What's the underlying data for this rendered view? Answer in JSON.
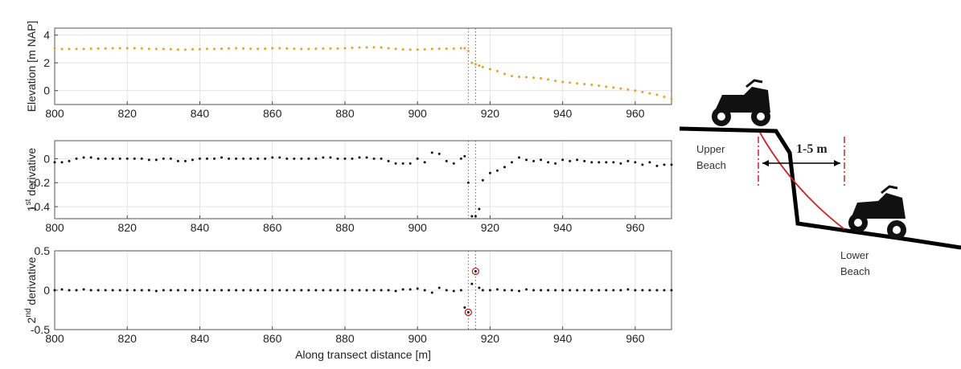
{
  "chart_data": [
    {
      "type": "scatter",
      "ylabel": "Elevation [m NAP]",
      "color": "#e3a12f",
      "grid": true,
      "xlim": [
        800,
        970
      ],
      "xticks": [
        800,
        820,
        840,
        860,
        880,
        900,
        920,
        940,
        960
      ],
      "ylim": [
        -1,
        4.5
      ],
      "yticks": [
        0,
        2,
        4
      ],
      "vlines": [
        914,
        916
      ],
      "x": [
        800,
        802,
        804,
        806,
        808,
        810,
        812,
        814,
        816,
        818,
        820,
        822,
        824,
        826,
        828,
        830,
        832,
        834,
        836,
        838,
        840,
        842,
        844,
        846,
        848,
        850,
        852,
        854,
        856,
        858,
        860,
        862,
        864,
        866,
        868,
        870,
        872,
        874,
        876,
        878,
        880,
        882,
        884,
        886,
        888,
        890,
        892,
        894,
        896,
        898,
        900,
        902,
        904,
        906,
        908,
        910,
        912,
        913,
        914,
        915,
        916,
        917,
        918,
        920,
        922,
        924,
        926,
        928,
        930,
        932,
        934,
        936,
        938,
        940,
        942,
        944,
        946,
        948,
        950,
        952,
        954,
        956,
        958,
        960,
        962,
        964,
        966,
        968,
        970
      ],
      "values": [
        3.05,
        3.0,
        3.0,
        3.0,
        3.0,
        3.02,
        3.03,
        3.03,
        3.05,
        3.05,
        3.05,
        3.05,
        3.03,
        3.0,
        3.0,
        3.0,
        2.98,
        2.95,
        2.95,
        2.97,
        2.98,
        3.0,
        3.0,
        3.02,
        3.03,
        3.05,
        3.03,
        3.02,
        3.0,
        3.02,
        3.05,
        3.05,
        3.03,
        3.02,
        3.0,
        3.0,
        3.02,
        3.03,
        3.03,
        3.03,
        3.05,
        3.08,
        3.1,
        3.12,
        3.12,
        3.1,
        3.05,
        3.0,
        2.97,
        2.95,
        2.95,
        2.97,
        3.0,
        3.02,
        3.02,
        3.03,
        3.05,
        3.05,
        2.85,
        2.0,
        1.9,
        1.8,
        1.7,
        1.55,
        1.4,
        1.2,
        1.05,
        1.0,
        0.97,
        0.93,
        0.88,
        0.8,
        0.7,
        0.62,
        0.57,
        0.52,
        0.47,
        0.42,
        0.35,
        0.28,
        0.22,
        0.15,
        0.08,
        0,
        -0.1,
        -0.2,
        -0.3,
        -0.45,
        -0.6
      ]
    },
    {
      "type": "scatter",
      "ylabel": {
        "base": "1",
        "sup": "st",
        "text": " derivative"
      },
      "color": "#111111",
      "grid": true,
      "xlim": [
        800,
        970
      ],
      "xticks": [
        800,
        820,
        840,
        860,
        880,
        900,
        920,
        940,
        960
      ],
      "ylim": [
        -0.5,
        0.15
      ],
      "yticks": [
        -0.4,
        -0.2,
        0
      ],
      "vlines": [
        914,
        916
      ],
      "x": [
        800,
        802,
        804,
        806,
        808,
        810,
        812,
        814,
        816,
        818,
        820,
        822,
        824,
        826,
        828,
        830,
        832,
        834,
        836,
        838,
        840,
        842,
        844,
        846,
        848,
        850,
        852,
        854,
        856,
        858,
        860,
        862,
        864,
        866,
        868,
        870,
        872,
        874,
        876,
        878,
        880,
        882,
        884,
        886,
        888,
        890,
        892,
        894,
        896,
        898,
        900,
        902,
        904,
        906,
        908,
        910,
        912,
        913,
        914,
        915,
        916,
        917,
        918,
        920,
        922,
        924,
        926,
        928,
        930,
        932,
        934,
        936,
        938,
        940,
        942,
        944,
        946,
        948,
        950,
        952,
        954,
        956,
        958,
        960,
        962,
        964,
        966,
        968,
        970
      ],
      "values": [
        -0.03,
        -0.03,
        -0.02,
        0,
        0.01,
        0.01,
        0,
        0,
        0,
        0,
        0,
        0,
        0,
        -0.01,
        -0.01,
        0,
        0,
        -0.02,
        -0.02,
        -0.01,
        0,
        0,
        0,
        0.01,
        0,
        0,
        0,
        0,
        0,
        0,
        0.01,
        0.01,
        0,
        0,
        0,
        0,
        0,
        0.01,
        0.01,
        0,
        0,
        0,
        0.01,
        0.01,
        0,
        0,
        -0.02,
        -0.04,
        -0.04,
        -0.04,
        0,
        -0.03,
        0.05,
        0.04,
        -0.02,
        -0.04,
        0,
        0.02,
        -0.2,
        -0.48,
        -0.48,
        -0.42,
        -0.18,
        -0.12,
        -0.1,
        -0.07,
        -0.03,
        0.01,
        -0.01,
        -0.02,
        -0.01,
        -0.03,
        -0.04,
        -0.01,
        -0.02,
        -0.01,
        -0.02,
        -0.03,
        -0.03,
        -0.03,
        -0.03,
        -0.04,
        -0.02,
        -0.03,
        -0.05,
        -0.03,
        -0.06,
        -0.05,
        -0.05
      ]
    },
    {
      "type": "scatter",
      "ylabel": {
        "base": "2",
        "sup": "nd",
        "text": " derivative"
      },
      "xlabel": "Along transect distance [m]",
      "color": "#111111",
      "grid": true,
      "xlim": [
        800,
        970
      ],
      "xticks": [
        800,
        820,
        840,
        860,
        880,
        900,
        920,
        940,
        960
      ],
      "ylim": [
        -0.5,
        0.5
      ],
      "yticks": [
        -0.5,
        0,
        0.5
      ],
      "vlines": [
        914,
        916
      ],
      "highlight_x": [
        914,
        916
      ],
      "highlight_color": "#c0282d",
      "x": [
        800,
        802,
        804,
        806,
        808,
        810,
        812,
        814,
        816,
        818,
        820,
        822,
        824,
        826,
        828,
        830,
        832,
        834,
        836,
        838,
        840,
        842,
        844,
        846,
        848,
        850,
        852,
        854,
        856,
        858,
        860,
        862,
        864,
        866,
        868,
        870,
        872,
        874,
        876,
        878,
        880,
        882,
        884,
        886,
        888,
        890,
        892,
        894,
        896,
        898,
        900,
        902,
        904,
        906,
        908,
        910,
        912,
        913,
        914,
        915,
        916,
        917,
        918,
        920,
        922,
        924,
        926,
        928,
        930,
        932,
        934,
        936,
        938,
        940,
        942,
        944,
        946,
        948,
        950,
        952,
        954,
        956,
        958,
        960,
        962,
        964,
        966,
        968,
        970
      ],
      "values": [
        0,
        0.01,
        0,
        0,
        0.01,
        0,
        0,
        0,
        0,
        0,
        0,
        0,
        0,
        0,
        -0.01,
        0,
        0,
        0,
        0,
        0,
        0,
        0,
        0,
        0,
        0,
        0,
        0,
        0,
        0,
        0,
        0,
        0,
        0,
        0,
        0,
        0,
        0,
        0,
        0,
        0,
        0,
        0,
        0,
        0,
        0,
        0,
        0,
        -0.01,
        0.01,
        0.01,
        0.02,
        0,
        -0.03,
        0.03,
        0,
        -0.01,
        0,
        -0.22,
        -0.28,
        0.08,
        0.24,
        0.03,
        0,
        0,
        0.01,
        0,
        0,
        -0.01,
        0.01,
        0,
        0,
        0,
        0,
        0,
        0,
        0,
        0,
        0,
        0,
        0,
        0,
        0,
        0.01,
        0,
        0,
        0,
        0,
        0,
        0
      ]
    }
  ],
  "diagram": {
    "upper_beach": [
      "Upper",
      "Beach"
    ],
    "distance": "1-5 m",
    "lower_beach": [
      "Lower",
      "Beach"
    ]
  }
}
